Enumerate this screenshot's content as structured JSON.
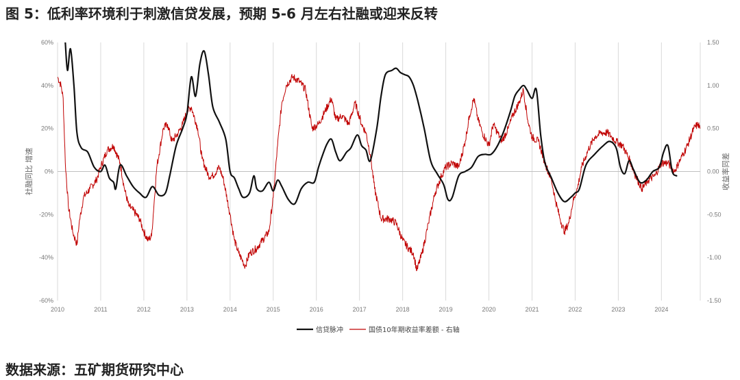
{
  "figure": {
    "title": "图 5：低利率环境利于刺激信贷发展，预期 5-6 月左右社融或迎来反转",
    "source": "数据来源：五矿期货研究中心"
  },
  "chart_data": {
    "type": "line",
    "xlim": [
      2010,
      2024.9
    ],
    "x_ticks": [
      "2010",
      "2011",
      "2012",
      "2013",
      "2014",
      "2015",
      "2016",
      "2017",
      "2018",
      "2019",
      "2020",
      "2021",
      "2022",
      "2023",
      "2024"
    ],
    "ylabel_left": "社融同比 增速",
    "ylabel_right": "收益率同差",
    "ylim_left": [
      -60,
      60
    ],
    "ylim_right": [
      -1.5,
      1.5
    ],
    "yticks_left": [
      "60%",
      "40%",
      "20%",
      "0%",
      "-20%",
      "-40%",
      "-60%"
    ],
    "yticks_right": [
      "1.50",
      "1.00",
      "0.50",
      "0.00",
      "-0.50",
      "-1.00",
      "-1.50"
    ],
    "grid": "vertical",
    "legend_position": "bottom",
    "colors": {
      "credit": "#111111",
      "yield": "#c00000",
      "grid": "#d9d9d9"
    },
    "series": [
      {
        "name": "信贷脉冲",
        "axis": "left",
        "color": "#111111",
        "points": [
          [
            2010.18,
            60
          ],
          [
            2010.23,
            47
          ],
          [
            2010.3,
            57
          ],
          [
            2010.38,
            40
          ],
          [
            2010.45,
            18
          ],
          [
            2010.55,
            11
          ],
          [
            2010.7,
            9
          ],
          [
            2010.85,
            2
          ],
          [
            2011.0,
            0
          ],
          [
            2011.1,
            3
          ],
          [
            2011.2,
            -3
          ],
          [
            2011.3,
            -5
          ],
          [
            2011.35,
            -8
          ],
          [
            2011.45,
            3
          ],
          [
            2011.6,
            -2
          ],
          [
            2011.75,
            -7
          ],
          [
            2011.9,
            -10
          ],
          [
            2012.05,
            -12
          ],
          [
            2012.2,
            -7
          ],
          [
            2012.35,
            -11
          ],
          [
            2012.5,
            -10
          ],
          [
            2012.6,
            -2
          ],
          [
            2012.75,
            12
          ],
          [
            2012.9,
            20
          ],
          [
            2013.0,
            27
          ],
          [
            2013.1,
            44
          ],
          [
            2013.2,
            35
          ],
          [
            2013.3,
            50
          ],
          [
            2013.4,
            56
          ],
          [
            2013.5,
            45
          ],
          [
            2013.6,
            30
          ],
          [
            2013.75,
            23
          ],
          [
            2013.9,
            15
          ],
          [
            2014.0,
            0
          ],
          [
            2014.1,
            -3
          ],
          [
            2014.2,
            -8
          ],
          [
            2014.3,
            -12
          ],
          [
            2014.45,
            -10
          ],
          [
            2014.55,
            -2
          ],
          [
            2014.62,
            -8
          ],
          [
            2014.75,
            -9
          ],
          [
            2014.9,
            -5
          ],
          [
            2015.0,
            -9
          ],
          [
            2015.1,
            -4
          ],
          [
            2015.2,
            -7
          ],
          [
            2015.35,
            -13
          ],
          [
            2015.5,
            -15
          ],
          [
            2015.65,
            -8
          ],
          [
            2015.8,
            -5
          ],
          [
            2015.95,
            -5
          ],
          [
            2016.05,
            2
          ],
          [
            2016.15,
            8
          ],
          [
            2016.25,
            13
          ],
          [
            2016.35,
            15
          ],
          [
            2016.45,
            9
          ],
          [
            2016.55,
            5
          ],
          [
            2016.7,
            9
          ],
          [
            2016.8,
            11
          ],
          [
            2016.95,
            17
          ],
          [
            2017.05,
            12
          ],
          [
            2017.15,
            10
          ],
          [
            2017.25,
            5
          ],
          [
            2017.4,
            20
          ],
          [
            2017.5,
            35
          ],
          [
            2017.6,
            45
          ],
          [
            2017.75,
            47
          ],
          [
            2017.85,
            48
          ],
          [
            2017.95,
            46
          ],
          [
            2018.05,
            45
          ],
          [
            2018.15,
            44
          ],
          [
            2018.25,
            40
          ],
          [
            2018.35,
            33
          ],
          [
            2018.5,
            20
          ],
          [
            2018.65,
            5
          ],
          [
            2018.8,
            -1
          ],
          [
            2018.95,
            -6
          ],
          [
            2019.05,
            -13
          ],
          [
            2019.15,
            -12
          ],
          [
            2019.3,
            -2
          ],
          [
            2019.45,
            0
          ],
          [
            2019.6,
            2
          ],
          [
            2019.75,
            7
          ],
          [
            2019.9,
            8
          ],
          [
            2020.05,
            8
          ],
          [
            2020.2,
            12
          ],
          [
            2020.35,
            19
          ],
          [
            2020.5,
            28
          ],
          [
            2020.6,
            35
          ],
          [
            2020.7,
            38
          ],
          [
            2020.8,
            40
          ],
          [
            2020.88,
            38
          ],
          [
            2021.0,
            34
          ],
          [
            2021.1,
            38
          ],
          [
            2021.2,
            17
          ],
          [
            2021.3,
            4
          ],
          [
            2021.45,
            -3
          ],
          [
            2021.6,
            -10
          ],
          [
            2021.75,
            -14
          ],
          [
            2021.9,
            -12
          ],
          [
            2022.0,
            -10
          ],
          [
            2022.1,
            -8
          ],
          [
            2022.25,
            3
          ],
          [
            2022.45,
            8
          ],
          [
            2022.65,
            12
          ],
          [
            2022.8,
            14
          ],
          [
            2022.95,
            11
          ],
          [
            2023.05,
            2
          ],
          [
            2023.15,
            -1
          ],
          [
            2023.25,
            5
          ],
          [
            2023.35,
            1
          ],
          [
            2023.5,
            -5
          ],
          [
            2023.65,
            -4
          ],
          [
            2023.8,
            0
          ],
          [
            2023.95,
            2
          ],
          [
            2024.05,
            9
          ],
          [
            2024.15,
            12
          ],
          [
            2024.25,
            0
          ],
          [
            2024.35,
            -2
          ]
        ]
      },
      {
        "name": "国债10年期收益率差额 - 右轴",
        "axis": "right",
        "color": "#c00000",
        "points": [
          [
            2010.0,
            1.1
          ],
          [
            2010.08,
            1.0
          ],
          [
            2010.13,
            0.85
          ],
          [
            2010.18,
            0.1
          ],
          [
            2010.25,
            -0.4
          ],
          [
            2010.35,
            -0.7
          ],
          [
            2010.45,
            -0.85
          ],
          [
            2010.5,
            -0.6
          ],
          [
            2010.6,
            -0.3
          ],
          [
            2010.75,
            -0.2
          ],
          [
            2010.9,
            -0.1
          ],
          [
            2011.0,
            0.05
          ],
          [
            2011.15,
            0.25
          ],
          [
            2011.3,
            0.3
          ],
          [
            2011.45,
            0.1
          ],
          [
            2011.55,
            -0.2
          ],
          [
            2011.65,
            -0.4
          ],
          [
            2011.75,
            -0.45
          ],
          [
            2011.9,
            -0.55
          ],
          [
            2012.0,
            -0.7
          ],
          [
            2012.1,
            -0.8
          ],
          [
            2012.18,
            -0.75
          ],
          [
            2012.3,
            0.05
          ],
          [
            2012.45,
            0.5
          ],
          [
            2012.55,
            0.55
          ],
          [
            2012.65,
            0.35
          ],
          [
            2012.8,
            0.45
          ],
          [
            2012.9,
            0.55
          ],
          [
            2013.0,
            0.7
          ],
          [
            2013.1,
            0.75
          ],
          [
            2013.25,
            0.5
          ],
          [
            2013.35,
            0.15
          ],
          [
            2013.5,
            -0.05
          ],
          [
            2013.6,
            -0.05
          ],
          [
            2013.75,
            0.05
          ],
          [
            2013.85,
            -0.1
          ],
          [
            2014.0,
            -0.5
          ],
          [
            2014.1,
            -0.8
          ],
          [
            2014.2,
            -0.95
          ],
          [
            2014.3,
            -1.05
          ],
          [
            2014.35,
            -1.1
          ],
          [
            2014.45,
            -0.95
          ],
          [
            2014.6,
            -0.9
          ],
          [
            2014.75,
            -0.8
          ],
          [
            2014.9,
            -0.7
          ],
          [
            2015.0,
            -0.3
          ],
          [
            2015.1,
            0.3
          ],
          [
            2015.2,
            0.8
          ],
          [
            2015.3,
            1.0
          ],
          [
            2015.45,
            1.1
          ],
          [
            2015.6,
            1.05
          ],
          [
            2015.75,
            0.95
          ],
          [
            2015.9,
            0.5
          ],
          [
            2016.05,
            0.55
          ],
          [
            2016.2,
            0.7
          ],
          [
            2016.35,
            0.85
          ],
          [
            2016.45,
            0.6
          ],
          [
            2016.6,
            0.65
          ],
          [
            2016.75,
            0.55
          ],
          [
            2016.9,
            0.8
          ],
          [
            2017.05,
            0.55
          ],
          [
            2017.15,
            0.45
          ],
          [
            2017.25,
            0.2
          ],
          [
            2017.35,
            -0.2
          ],
          [
            2017.5,
            -0.55
          ],
          [
            2017.7,
            -0.55
          ],
          [
            2017.85,
            -0.6
          ],
          [
            2018.0,
            -0.8
          ],
          [
            2018.15,
            -0.9
          ],
          [
            2018.25,
            -0.95
          ],
          [
            2018.33,
            -1.15
          ],
          [
            2018.45,
            -0.95
          ],
          [
            2018.6,
            -0.6
          ],
          [
            2018.75,
            -0.25
          ],
          [
            2018.9,
            -0.05
          ],
          [
            2019.0,
            0.05
          ],
          [
            2019.15,
            0.1
          ],
          [
            2019.3,
            0.05
          ],
          [
            2019.45,
            0.35
          ],
          [
            2019.55,
            0.65
          ],
          [
            2019.65,
            0.85
          ],
          [
            2019.75,
            0.6
          ],
          [
            2019.85,
            0.45
          ],
          [
            2020.0,
            0.3
          ],
          [
            2020.1,
            0.55
          ],
          [
            2020.2,
            0.45
          ],
          [
            2020.3,
            0.35
          ],
          [
            2020.45,
            0.5
          ],
          [
            2020.55,
            0.65
          ],
          [
            2020.7,
            0.8
          ],
          [
            2020.8,
            0.95
          ],
          [
            2020.9,
            0.6
          ],
          [
            2021.0,
            0.4
          ],
          [
            2021.15,
            0.35
          ],
          [
            2021.3,
            0.1
          ],
          [
            2021.45,
            -0.1
          ],
          [
            2021.55,
            -0.35
          ],
          [
            2021.65,
            -0.55
          ],
          [
            2021.75,
            -0.7
          ],
          [
            2021.85,
            -0.6
          ],
          [
            2021.95,
            -0.35
          ],
          [
            2022.05,
            -0.2
          ],
          [
            2022.15,
            0.05
          ],
          [
            2022.3,
            0.25
          ],
          [
            2022.45,
            0.4
          ],
          [
            2022.6,
            0.45
          ],
          [
            2022.75,
            0.45
          ],
          [
            2022.85,
            0.4
          ],
          [
            2022.95,
            0.35
          ],
          [
            2023.1,
            0.3
          ],
          [
            2023.25,
            0.15
          ],
          [
            2023.4,
            -0.05
          ],
          [
            2023.55,
            -0.2
          ],
          [
            2023.7,
            -0.1
          ],
          [
            2023.85,
            -0.05
          ],
          [
            2024.0,
            0.1
          ],
          [
            2024.15,
            0.1
          ],
          [
            2024.3,
            0.0
          ],
          [
            2024.45,
            0.15
          ],
          [
            2024.6,
            0.3
          ],
          [
            2024.75,
            0.5
          ],
          [
            2024.85,
            0.55
          ],
          [
            2024.9,
            0.5
          ]
        ]
      }
    ]
  }
}
